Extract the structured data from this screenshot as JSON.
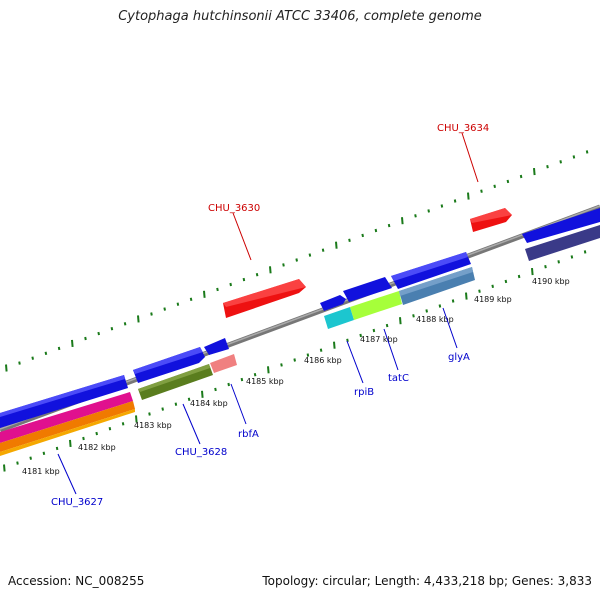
{
  "title": "Cytophaga hutchinsonii ATCC 33406, complete genome",
  "footer": {
    "accession": "Accession: NC_008255",
    "topology": "Topology: circular; Length: 4,433,218 bp; Genes: 3,833"
  },
  "kbp_labels": [
    "4181 kbp",
    "4182 kbp",
    "4183 kbp",
    "4184 kbp",
    "4185 kbp",
    "4186 kbp",
    "4187 kbp",
    "4188 kbp",
    "4189 kbp",
    "4190 kbp"
  ],
  "colors": {
    "forward_cds": "#ee1111",
    "reverse_cds": "#1111ee",
    "backbone": "#888888",
    "tick_major": "#116611",
    "tick_minor": "#2a8a2a",
    "forward_label": "#cc0000",
    "reverse_label": "#0000cc"
  },
  "gene_labels": [
    {
      "text": "CHU_3634",
      "strand": "forward"
    },
    {
      "text": "CHU_3630",
      "strand": "forward"
    },
    {
      "text": "CHU_3627",
      "strand": "reverse"
    },
    {
      "text": "CHU_3628",
      "strand": "reverse"
    },
    {
      "text": "rbfA",
      "strand": "reverse"
    },
    {
      "text": "rpiB",
      "strand": "reverse"
    },
    {
      "text": "tatC",
      "strand": "reverse"
    },
    {
      "text": "glyA",
      "strand": "reverse"
    }
  ]
}
